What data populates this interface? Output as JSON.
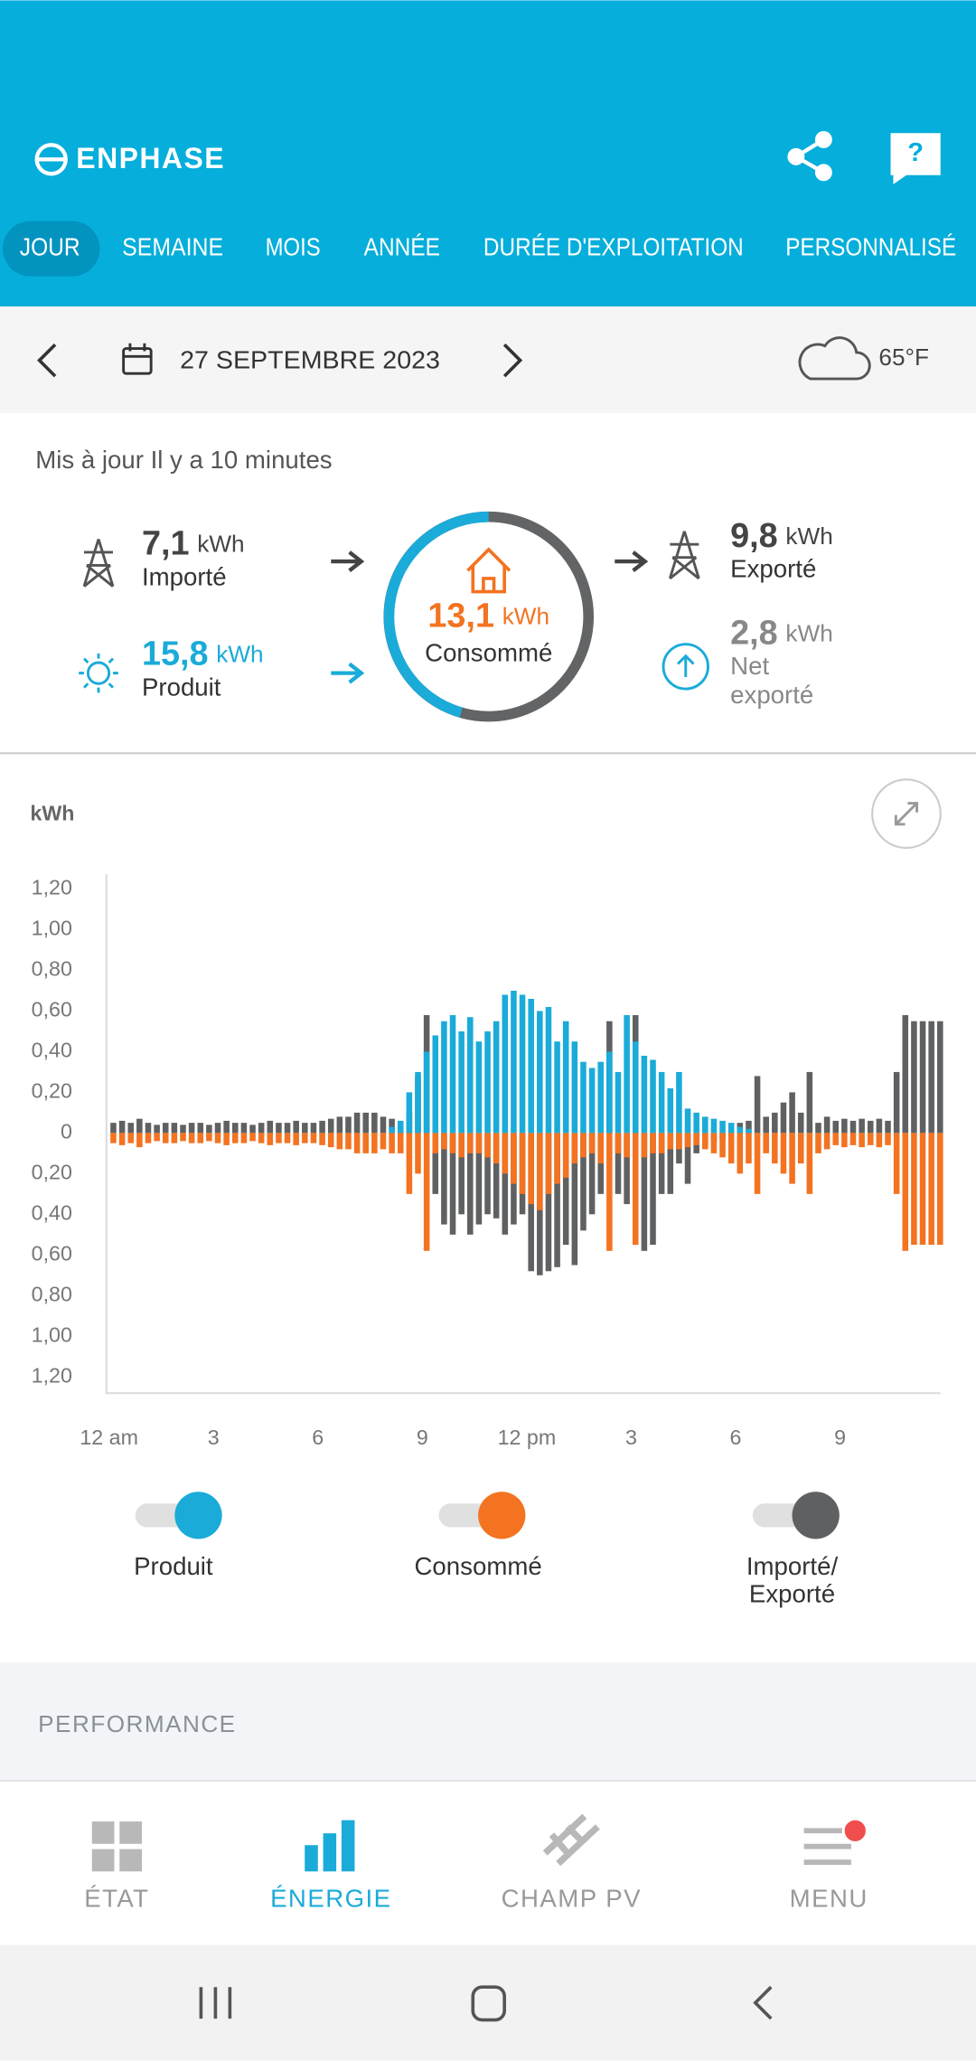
{
  "header": {
    "brand": "ENPHASE",
    "help": "?"
  },
  "tabs": [
    "JOUR",
    "SEMAINE",
    "MOIS",
    "ANNÉE",
    "DURÉE D'EXPLOITATION",
    "PERSONNALISÉ"
  ],
  "date_bar": {
    "date": "27 SEPTEMBRE 2023",
    "weather": "65°F"
  },
  "updated": "Mis à jour Il y a 10 minutes",
  "summary": {
    "imported": {
      "value": "7,1",
      "unit": "kWh",
      "label": "Importé"
    },
    "produced": {
      "value": "15,8",
      "unit": "kWh",
      "label": "Produit"
    },
    "consumed": {
      "value": "13,1",
      "unit": "kWh",
      "label": "Consommé"
    },
    "exported": {
      "value": "9,8",
      "unit": "kWh",
      "label": "Exporté"
    },
    "net_exported": {
      "value": "2,8",
      "unit": "kWh",
      "label_lines": [
        "Net",
        "exporté"
      ]
    }
  },
  "chart": {
    "type": "bar",
    "y_label": "kWh",
    "xlim": [
      0,
      24
    ],
    "xticks": [
      {
        "value": 0,
        "label": "12 am"
      },
      3,
      6,
      9,
      {
        "value": 12,
        "label": "12 pm"
      },
      {
        "value": 15,
        "label": "3"
      },
      {
        "value": 18,
        "label": "6"
      },
      {
        "value": 21,
        "label": "9"
      }
    ],
    "ylim": [
      -1.28,
      1.28
    ],
    "yticks": [
      {
        "value": 1.2,
        "label": "1,20"
      },
      {
        "value": 1.0,
        "label": "1,00"
      },
      {
        "value": 0.8,
        "label": "0,80"
      },
      {
        "value": 0.6,
        "label": "0,60"
      },
      {
        "value": 0.4,
        "label": "0,40"
      },
      {
        "value": 0.2,
        "label": "0,20"
      },
      0,
      {
        "value": -0.2,
        "label": "0,20"
      },
      {
        "value": -0.4,
        "label": "0,40"
      },
      {
        "value": -0.6,
        "label": "0,60"
      },
      {
        "value": -0.8,
        "label": "0,80"
      },
      {
        "value": -1.0,
        "label": "1,00"
      },
      {
        "value": -1.2,
        "label": "1,20"
      }
    ],
    "x": [
      0,
      0.25,
      0.5,
      0.75,
      1,
      1.25,
      1.5,
      1.75,
      2,
      2.25,
      2.5,
      2.75,
      3,
      3.25,
      3.5,
      3.75,
      4,
      4.25,
      4.5,
      4.75,
      5,
      5.25,
      5.5,
      5.75,
      6,
      6.25,
      6.5,
      6.75,
      7,
      7.25,
      7.5,
      7.75,
      8,
      8.25,
      8.5,
      8.75,
      9,
      9.25,
      9.5,
      9.75,
      10,
      10.25,
      10.5,
      10.75,
      11,
      11.25,
      11.5,
      11.75,
      12,
      12.25,
      12.5,
      12.75,
      13,
      13.25,
      13.5,
      13.75,
      14,
      14.25,
      14.5,
      14.75,
      15,
      15.25,
      15.5,
      15.75,
      16,
      16.25,
      16.5,
      16.75,
      17,
      17.25,
      17.5,
      17.75,
      18,
      18.25,
      18.5,
      18.75,
      19,
      19.25,
      19.5,
      19.75,
      20,
      20.25,
      20.5,
      20.75,
      21,
      21.25,
      21.5,
      21.75,
      22,
      22.25,
      22.5,
      22.75,
      23,
      23.25,
      23.5,
      23.75
    ],
    "series": [
      {
        "name": "Produit",
        "color": "#1aabd9",
        "direction": "up",
        "values": [
          0,
          0,
          0,
          0,
          0,
          0,
          0,
          0,
          0,
          0,
          0,
          0,
          0,
          0,
          0,
          0,
          0,
          0,
          0,
          0,
          0,
          0,
          0,
          0,
          0,
          0,
          0,
          0,
          0,
          0,
          0,
          0,
          0.03,
          0.06,
          0.2,
          0.3,
          0.4,
          0.48,
          0.55,
          0.58,
          0.5,
          0.57,
          0.45,
          0.5,
          0.55,
          0.68,
          0.7,
          0.68,
          0.66,
          0.6,
          0.62,
          0.45,
          0.55,
          0.45,
          0.35,
          0.32,
          0.35,
          0.4,
          0.3,
          0.58,
          0.45,
          0.38,
          0.36,
          0.3,
          0.22,
          0.3,
          0.12,
          0.1,
          0.08,
          0.07,
          0.06,
          0.05,
          0.03,
          0.02,
          0,
          0,
          0,
          0,
          0,
          0,
          0,
          0,
          0,
          0,
          0,
          0,
          0,
          0,
          0,
          0,
          0,
          0,
          0,
          0,
          0,
          0
        ]
      },
      {
        "name": "Consommé",
        "color": "#f37321",
        "direction": "down",
        "values": [
          0.05,
          0.06,
          0.05,
          0.07,
          0.05,
          0.04,
          0.05,
          0.05,
          0.04,
          0.05,
          0.05,
          0.04,
          0.05,
          0.06,
          0.05,
          0.05,
          0.04,
          0.05,
          0.06,
          0.05,
          0.05,
          0.06,
          0.05,
          0.05,
          0.06,
          0.07,
          0.08,
          0.08,
          0.1,
          0.1,
          0.1,
          0.08,
          0.1,
          0.1,
          0.3,
          0.2,
          0.58,
          0.1,
          0.08,
          0.1,
          0.12,
          0.1,
          0.1,
          0.12,
          0.15,
          0.2,
          0.25,
          0.3,
          0.35,
          0.38,
          0.3,
          0.25,
          0.22,
          0.15,
          0.12,
          0.1,
          0.15,
          0.58,
          0.1,
          0.12,
          0.55,
          0.12,
          0.1,
          0.1,
          0.08,
          0.08,
          0.07,
          0.06,
          0.08,
          0.1,
          0.12,
          0.15,
          0.2,
          0.15,
          0.3,
          0.1,
          0.15,
          0.2,
          0.25,
          0.15,
          0.3,
          0.1,
          0.08,
          0.06,
          0.07,
          0.06,
          0.07,
          0.06,
          0.07,
          0.06,
          0.3,
          0.58,
          0.55,
          0.55,
          0.55,
          0.55
        ]
      },
      {
        "name": "Importé/ Exporté",
        "color": "#5f6062",
        "direction": "signed",
        "values": [
          0.05,
          0.06,
          0.05,
          0.07,
          0.05,
          0.04,
          0.05,
          0.05,
          0.04,
          0.05,
          0.05,
          0.04,
          0.05,
          0.06,
          0.05,
          0.05,
          0.04,
          0.05,
          0.06,
          0.05,
          0.05,
          0.06,
          0.05,
          0.05,
          0.06,
          0.07,
          0.08,
          0.08,
          0.1,
          0.1,
          0.1,
          0.08,
          0.07,
          0.04,
          0.1,
          0.28,
          0.58,
          -0.3,
          -0.45,
          -0.5,
          -0.4,
          -0.5,
          -0.45,
          -0.4,
          -0.42,
          -0.5,
          -0.45,
          -0.4,
          -0.68,
          -0.7,
          -0.68,
          -0.66,
          -0.55,
          -0.65,
          -0.48,
          -0.4,
          -0.3,
          0.55,
          -0.3,
          -0.35,
          0.58,
          -0.58,
          -0.55,
          -0.3,
          -0.3,
          -0.15,
          -0.25,
          -0.1,
          -0.06,
          -0.04,
          -0.03,
          -0.02,
          0.05,
          0.06,
          0.28,
          0.08,
          0.1,
          0.15,
          0.2,
          0.1,
          0.3,
          0.05,
          0.08,
          0.06,
          0.07,
          0.06,
          0.07,
          0.06,
          0.07,
          0.06,
          0.3,
          0.58,
          0.55,
          0.55,
          0.55,
          0.55
        ]
      }
    ]
  },
  "section": "PERFORMANCE",
  "nav": [
    "ÉTAT",
    "ÉNERGIE",
    "CHAMP PV",
    "MENU"
  ]
}
